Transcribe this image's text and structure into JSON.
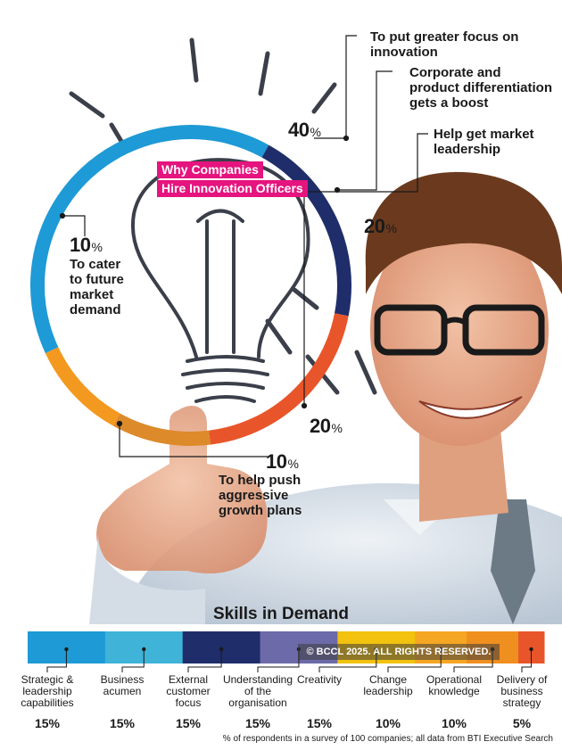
{
  "chart_data": [
    {
      "type": "pie",
      "title": "Why Companies Hire Innovation Officers",
      "title_lines": [
        "Why Companies",
        "Hire Innovation Officers"
      ],
      "slices": [
        {
          "label": "To put greater focus on innovation",
          "value": 40,
          "value_text": "40",
          "color": "#1e9ad6"
        },
        {
          "label": "Corporate and product differentiation gets a boost",
          "value": 20,
          "value_text": "20",
          "color": "#1f2d6a"
        },
        {
          "label": "Help get market leadership",
          "value": 20,
          "value_text": "20",
          "color": "#e8552a"
        },
        {
          "label": "To help push aggressive growth plans",
          "value": 10,
          "value_text": "10",
          "color": "#dd8a2a"
        },
        {
          "label": "To cater to future market demand",
          "value": 10,
          "value_text": "10",
          "color": "#f3991f"
        }
      ],
      "percent_symbol": "%"
    },
    {
      "type": "bar",
      "title": "Skills in Demand",
      "stacked": true,
      "categories": [
        {
          "label": "Strategic &\nleadership\ncapabilities",
          "value": 15,
          "value_text": "15%",
          "color": "#1e9ad6"
        },
        {
          "label": "Business\nacumen",
          "value": 15,
          "value_text": "15%",
          "color": "#3fb3d8"
        },
        {
          "label": "External\ncustomer\nfocus",
          "value": 15,
          "value_text": "15%",
          "color": "#1f2d6a"
        },
        {
          "label": "Understanding\nof the\norganisation",
          "value": 15,
          "value_text": "15%",
          "color": "#6d6aa9"
        },
        {
          "label": "Creativity",
          "value": 15,
          "value_text": "15%",
          "color": "#f2c20f"
        },
        {
          "label": "Change\nleadership",
          "value": 10,
          "value_text": "10%",
          "color": "#f5a623"
        },
        {
          "label": "Operational\nknowledge",
          "value": 10,
          "value_text": "10%",
          "color": "#ef8f1f"
        },
        {
          "label": "Delivery of\nbusiness\nstrategy",
          "value": 5,
          "value_text": "5%",
          "color": "#e8552a"
        }
      ],
      "footnote": "% of respondents in a survey of 100 companies; all data from BTI Executive Search"
    }
  ],
  "copyright": "© BCCL 2025. ALL RIGHTS RESERVED.",
  "labels": {
    "s0": "To put greater focus on\ninnovation",
    "s1": "Corporate and\nproduct differentiation\ngets a boost",
    "s2": "Help get market\nleadership",
    "s3": "To help push\naggressive\ngrowth plans",
    "s4": "To cater\nto future\nmarket\ndemand"
  }
}
